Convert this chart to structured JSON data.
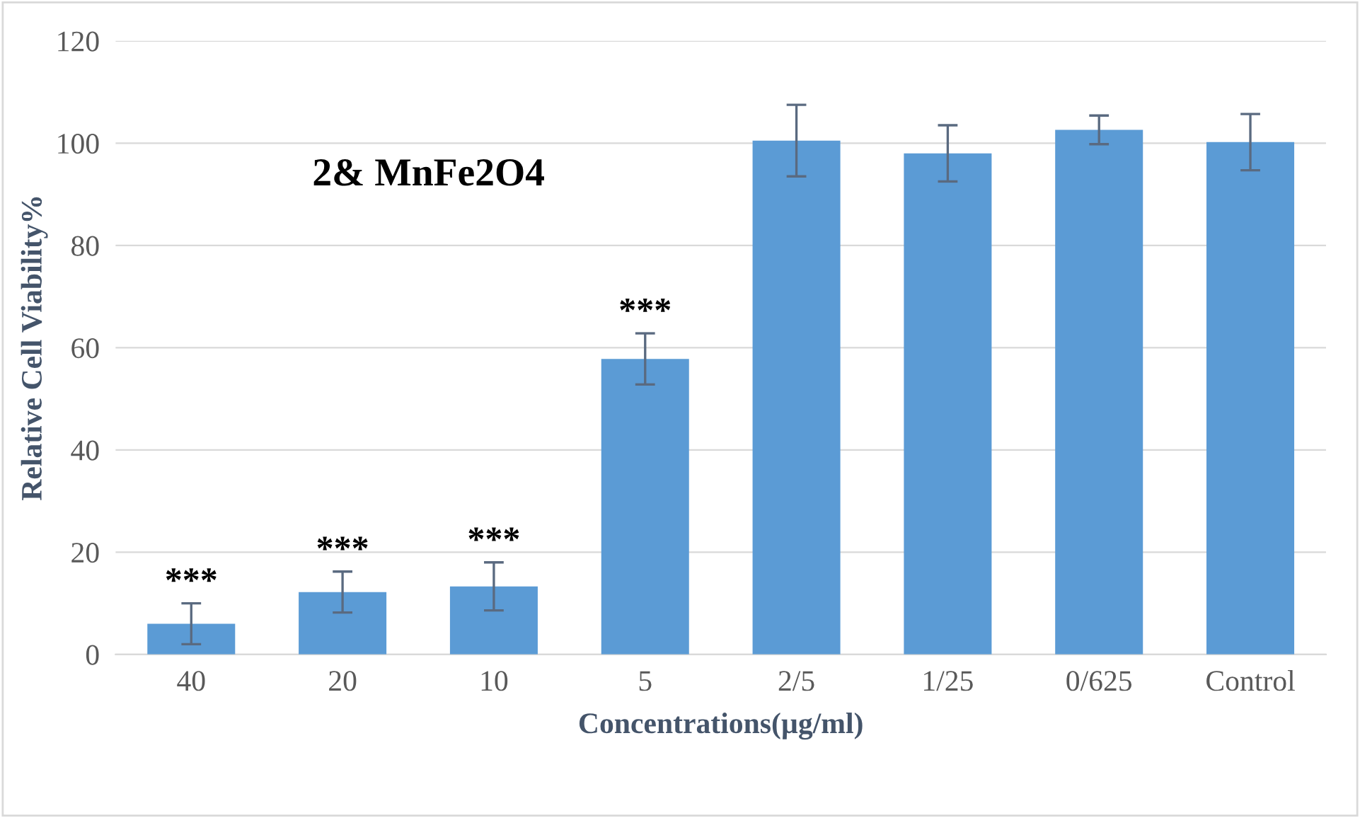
{
  "chart_data": {
    "type": "bar",
    "xlabel": "Concentrations(µg/ml)",
    "ylabel": "Relative Cell Viability%",
    "categories": [
      "40",
      "20",
      "10",
      "5",
      "2/5",
      "1/25",
      "0/625",
      "Control"
    ],
    "values": [
      6,
      12.2,
      13.3,
      57.8,
      100.5,
      98,
      102.6,
      100.2
    ],
    "errors": [
      4,
      4,
      4.7,
      5,
      7,
      5.5,
      2.8,
      5.5
    ],
    "color": "#5b9bd5",
    "ylim": [
      0,
      120
    ],
    "yticks": [
      0,
      20,
      40,
      60,
      80,
      100,
      120
    ],
    "grid": "y",
    "annotations": [
      "2& MnFe2O4",
      {
        "text": "***",
        "x": "40",
        "y": 10
      },
      {
        "text": "***",
        "x": "20",
        "y": 16.2
      },
      {
        "text": "***",
        "x": "10",
        "y": 18
      },
      {
        "text": "***",
        "x": "5",
        "y": 62.8
      }
    ]
  }
}
